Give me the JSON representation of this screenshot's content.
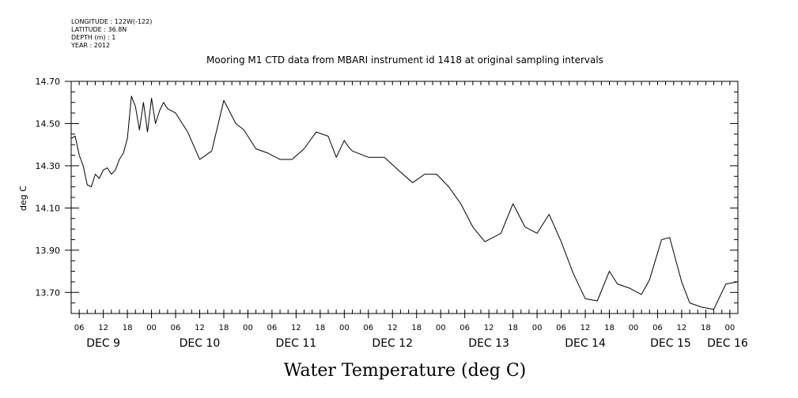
{
  "metadata": {
    "longitude": "LONGITUDE : 122W(-122)",
    "latitude": "LATITUDE : 36.8N",
    "depth": "DEPTH (m) : 1",
    "year": "YEAR : 2012"
  },
  "chart_data": {
    "type": "line",
    "title": "Mooring M1 CTD data from MBARI instrument id 1418 at original sampling intervals",
    "xlabel": "Water Temperature (deg C)",
    "ylabel": "deg C",
    "ylim": [
      13.6,
      14.7
    ],
    "xlim": [
      "2012-12-09T04:00",
      "2012-12-16T02:00"
    ],
    "y_ticks": [
      "14.70",
      "14.50",
      "14.30",
      "14.10",
      "13.90",
      "13.70"
    ],
    "hour_labels": [
      "06",
      "12",
      "18",
      "00",
      "06",
      "12",
      "18",
      "00",
      "06",
      "12",
      "18",
      "00",
      "06",
      "12",
      "18",
      "00",
      "06",
      "12",
      "18",
      "00",
      "06",
      "12",
      "18",
      "00",
      "06",
      "12",
      "18",
      "00"
    ],
    "day_labels": [
      "DEC  9",
      "DEC 10",
      "DEC 11",
      "DEC 12",
      "DEC 13",
      "DEC 14",
      "DEC 15",
      "DEC 16"
    ],
    "grid": false,
    "series": [
      {
        "color": "#000000",
        "x": [
          "2012-12-09T04:00",
          "2012-12-09T05:00",
          "2012-12-09T06:00",
          "2012-12-09T07:00",
          "2012-12-09T08:00",
          "2012-12-09T09:00",
          "2012-12-09T10:00",
          "2012-12-09T11:00",
          "2012-12-09T12:00",
          "2012-12-09T13:00",
          "2012-12-09T14:00",
          "2012-12-09T15:00",
          "2012-12-09T16:00",
          "2012-12-09T17:00",
          "2012-12-09T18:00",
          "2012-12-09T19:00",
          "2012-12-09T20:00",
          "2012-12-09T21:00",
          "2012-12-09T22:00",
          "2012-12-09T23:00",
          "2012-12-10T00:00",
          "2012-12-10T01:00",
          "2012-12-10T02:00",
          "2012-12-10T03:00",
          "2012-12-10T04:00",
          "2012-12-10T05:00",
          "2012-12-10T06:00",
          "2012-12-10T09:00",
          "2012-12-10T12:00",
          "2012-12-10T15:00",
          "2012-12-10T18:00",
          "2012-12-10T21:00",
          "2012-12-10T23:00",
          "2012-12-11T02:00",
          "2012-12-11T05:00",
          "2012-12-11T08:00",
          "2012-12-11T11:00",
          "2012-12-11T14:00",
          "2012-12-11T17:00",
          "2012-12-11T20:00",
          "2012-12-11T22:00",
          "2012-12-12T00:00",
          "2012-12-12T01:00",
          "2012-12-12T02:00",
          "2012-12-12T06:00",
          "2012-12-12T10:00",
          "2012-12-12T14:00",
          "2012-12-12T17:00",
          "2012-12-12T20:00",
          "2012-12-12T23:00",
          "2012-12-13T02:00",
          "2012-12-13T05:00",
          "2012-12-13T08:00",
          "2012-12-13T11:00",
          "2012-12-13T13:00",
          "2012-12-13T15:00",
          "2012-12-13T18:00",
          "2012-12-13T21:00",
          "2012-12-14T00:00",
          "2012-12-14T03:00",
          "2012-12-14T06:00",
          "2012-12-14T09:00",
          "2012-12-14T12:00",
          "2012-12-14T15:00",
          "2012-12-14T18:00",
          "2012-12-14T20:00",
          "2012-12-14T23:00",
          "2012-12-15T02:00",
          "2012-12-15T04:00",
          "2012-12-15T07:00",
          "2012-12-15T09:00",
          "2012-12-15T12:00",
          "2012-12-15T14:00",
          "2012-12-15T17:00",
          "2012-12-15T20:00",
          "2012-12-15T23:00",
          "2012-12-16T02:00"
        ],
        "y": [
          14.43,
          14.44,
          14.35,
          14.3,
          14.21,
          14.2,
          14.26,
          14.24,
          14.28,
          14.29,
          14.26,
          14.28,
          14.33,
          14.36,
          14.43,
          14.63,
          14.58,
          14.47,
          14.6,
          14.46,
          14.62,
          14.5,
          14.56,
          14.6,
          14.57,
          14.56,
          14.55,
          14.46,
          14.33,
          14.37,
          14.61,
          14.5,
          14.47,
          14.38,
          14.36,
          14.33,
          14.33,
          14.38,
          14.46,
          14.44,
          14.34,
          14.42,
          14.39,
          14.37,
          14.34,
          14.34,
          14.27,
          14.22,
          14.26,
          14.26,
          14.2,
          14.12,
          14.01,
          13.94,
          13.96,
          13.98,
          14.12,
          14.01,
          13.98,
          14.07,
          13.94,
          13.79,
          13.67,
          13.66,
          13.8,
          13.74,
          13.72,
          13.69,
          13.76,
          13.95,
          13.96,
          13.75,
          13.65,
          13.63,
          13.62,
          13.74,
          13.75
        ]
      }
    ]
  }
}
